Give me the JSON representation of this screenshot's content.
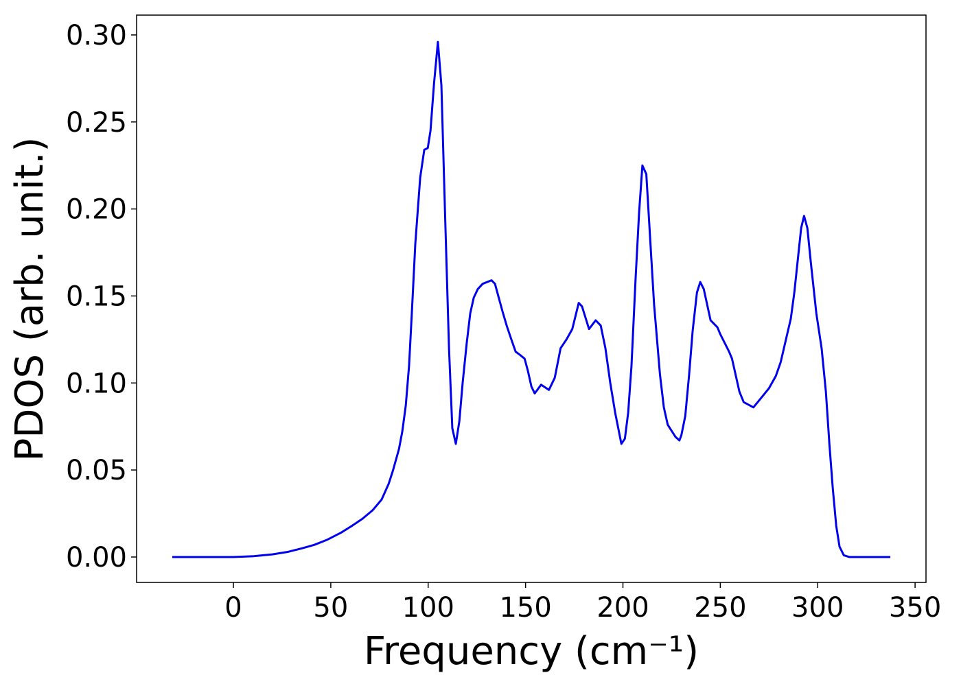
{
  "chart_data": {
    "type": "line",
    "xlabel": "Frequency (cm⁻¹)",
    "ylabel": "PDOS (arb. unit.)",
    "x": [
      -31.4,
      0,
      10.6,
      20,
      28.2,
      35.2,
      41.6,
      48.3,
      55.3,
      61,
      66.3,
      71.6,
      76.1,
      79.7,
      82,
      85,
      86.7,
      88.5,
      90.2,
      91.6,
      93.4,
      95.9,
      98,
      99.8,
      101.2,
      103,
      105,
      106.8,
      108.6,
      110.7,
      112.4,
      114.2,
      116,
      117.7,
      119.8,
      121.6,
      123.4,
      125.5,
      128,
      132.5,
      134.3,
      136,
      138.2,
      140.3,
      142.4,
      144.9,
      147.3,
      149.5,
      151.2,
      153,
      154.7,
      158,
      162,
      165,
      168,
      171,
      174,
      177.3,
      179,
      182.6,
      186,
      188.6,
      191,
      193.5,
      196,
      199.2,
      201,
      202.7,
      204.4,
      206.5,
      208.3,
      210,
      212,
      213.6,
      216,
      219,
      221,
      223,
      227,
      229,
      230,
      232,
      234,
      235.8,
      238,
      239.7,
      241.5,
      245,
      248.5,
      250,
      254.5,
      256,
      259.8,
      262,
      267,
      271.4,
      275,
      278.5,
      281,
      283.7,
      286.2,
      288,
      289.7,
      291.5,
      293,
      294.7,
      296.4,
      299.3,
      302,
      304.2,
      306,
      307.7,
      309.5,
      311.2,
      313.4,
      316.2,
      337.3
    ],
    "series": [
      {
        "name": "PDOS",
        "color": "#0000ee",
        "values": [
          0,
          0,
          0.0005,
          0.0015,
          0.003,
          0.005,
          0.007,
          0.01,
          0.014,
          0.018,
          0.022,
          0.027,
          0.033,
          0.042,
          0.05,
          0.062,
          0.072,
          0.087,
          0.11,
          0.14,
          0.18,
          0.218,
          0.234,
          0.235,
          0.245,
          0.272,
          0.296,
          0.271,
          0.2,
          0.12,
          0.074,
          0.065,
          0.078,
          0.1,
          0.123,
          0.14,
          0.149,
          0.154,
          0.157,
          0.159,
          0.157,
          0.15,
          0.141,
          0.133,
          0.126,
          0.118,
          0.116,
          0.114,
          0.107,
          0.098,
          0.094,
          0.099,
          0.096,
          0.103,
          0.12,
          0.125,
          0.131,
          0.146,
          0.144,
          0.131,
          0.136,
          0.133,
          0.12,
          0.1,
          0.083,
          0.065,
          0.068,
          0.083,
          0.11,
          0.16,
          0.198,
          0.225,
          0.22,
          0.19,
          0.145,
          0.105,
          0.086,
          0.076,
          0.069,
          0.067,
          0.07,
          0.081,
          0.105,
          0.13,
          0.152,
          0.158,
          0.154,
          0.136,
          0.132,
          0.128,
          0.118,
          0.114,
          0.095,
          0.089,
          0.086,
          0.092,
          0.097,
          0.104,
          0.112,
          0.125,
          0.137,
          0.152,
          0.17,
          0.189,
          0.196,
          0.189,
          0.17,
          0.14,
          0.12,
          0.095,
          0.065,
          0.04,
          0.018,
          0.006,
          0.001,
          0,
          0
        ]
      }
    ],
    "xlim": [
      -49.7,
      355.6
    ],
    "xticks": [
      0,
      50,
      100,
      150,
      200,
      250,
      300,
      350
    ],
    "ylim": [
      -0.0146,
      0.3114
    ],
    "yticks": [
      {
        "value": 0,
        "label": "0.00"
      },
      {
        "value": 0.05,
        "label": "0.05"
      },
      {
        "value": 0.1,
        "label": "0.10"
      },
      {
        "value": 0.15,
        "label": "0.15"
      },
      {
        "value": 0.2,
        "label": "0.20"
      },
      {
        "value": 0.25,
        "label": "0.25"
      },
      {
        "value": 0.3,
        "label": "0.30"
      }
    ],
    "grid": false
  }
}
